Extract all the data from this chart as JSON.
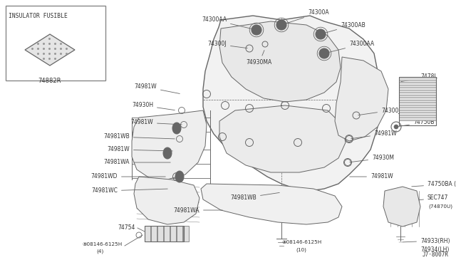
{
  "bg_color": "#ffffff",
  "line_color": "#666666",
  "text_color": "#333333",
  "diagram_ref": "J7·8007R",
  "inset_label": "INSULATOR FUSIBLE",
  "inset_part": "74882R",
  "fig_w": 6.4,
  "fig_h": 3.72,
  "dpi": 100
}
